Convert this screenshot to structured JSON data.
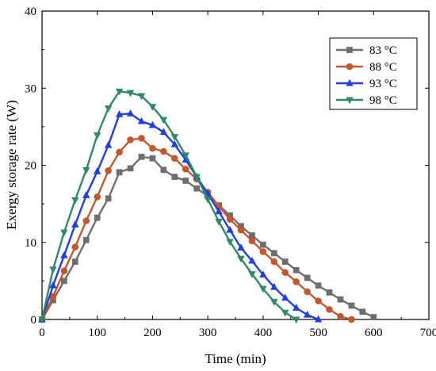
{
  "chart_data": {
    "type": "line",
    "xlabel": "Time (min)",
    "ylabel": "Exergy storage rate (W)",
    "xlim": [
      0,
      700
    ],
    "ylim": [
      0,
      40
    ],
    "xticks": [
      0,
      100,
      200,
      300,
      400,
      500,
      600,
      700
    ],
    "yticks": [
      0,
      10,
      20,
      30,
      40
    ],
    "grid": false,
    "legend_position": "top-right",
    "series": [
      {
        "name": "83 °C",
        "color": "#6e6e6e",
        "marker": "square",
        "x": [
          0,
          20,
          40,
          60,
          80,
          100,
          120,
          140,
          160,
          180,
          200,
          220,
          240,
          260,
          280,
          300,
          320,
          340,
          360,
          380,
          400,
          420,
          440,
          460,
          480,
          500,
          520,
          540,
          560,
          580,
          600
        ],
        "y": [
          0,
          2.5,
          5.0,
          7.5,
          10.3,
          13.2,
          15.7,
          19.1,
          19.6,
          21.1,
          20.9,
          19.4,
          18.5,
          18.0,
          17.0,
          16.0,
          14.8,
          13.5,
          12.1,
          10.9,
          9.7,
          8.6,
          7.5,
          6.4,
          5.4,
          4.4,
          3.5,
          2.6,
          1.8,
          1.0,
          0.3
        ]
      },
      {
        "name": "88 °C",
        "color": "#c1582f",
        "marker": "circle",
        "x": [
          0,
          20,
          40,
          60,
          80,
          100,
          120,
          140,
          160,
          180,
          200,
          220,
          240,
          260,
          280,
          300,
          320,
          340,
          360,
          380,
          400,
          420,
          440,
          460,
          480,
          500,
          520,
          540,
          560
        ],
        "y": [
          0,
          3.0,
          6.3,
          9.4,
          12.8,
          15.9,
          19.3,
          21.7,
          23.3,
          23.5,
          22.2,
          21.8,
          20.9,
          19.5,
          18.2,
          16.5,
          14.7,
          13.0,
          11.6,
          10.2,
          8.8,
          7.5,
          6.1,
          4.9,
          3.6,
          2.4,
          1.3,
          0.4,
          0
        ]
      },
      {
        "name": "93 °C",
        "color": "#1f3fe0",
        "marker": "triangle-up",
        "x": [
          0,
          20,
          40,
          60,
          80,
          100,
          120,
          140,
          160,
          180,
          200,
          220,
          240,
          260,
          280,
          300,
          320,
          340,
          360,
          380,
          400,
          420,
          440,
          460,
          480,
          500
        ],
        "y": [
          0,
          4.4,
          8.3,
          12.3,
          16.1,
          19.2,
          22.6,
          26.6,
          26.7,
          25.7,
          25.2,
          24.3,
          22.7,
          20.7,
          18.5,
          16.3,
          14.0,
          11.6,
          9.3,
          7.6,
          5.8,
          4.2,
          2.8,
          1.5,
          0.6,
          0
        ]
      },
      {
        "name": "98 °C",
        "color": "#2e8b66",
        "marker": "triangle-down",
        "x": [
          0,
          20,
          40,
          60,
          80,
          100,
          120,
          140,
          160,
          180,
          200,
          220,
          240,
          260,
          280,
          300,
          320,
          340,
          360,
          380,
          400,
          420,
          440,
          460
        ],
        "y": [
          0,
          6.5,
          11.3,
          15.5,
          19.4,
          23.9,
          27.4,
          29.6,
          29.4,
          29.0,
          27.6,
          25.9,
          23.7,
          21.3,
          18.5,
          15.6,
          12.7,
          10.1,
          7.9,
          5.9,
          4.0,
          2.3,
          0.9,
          0
        ]
      }
    ]
  }
}
